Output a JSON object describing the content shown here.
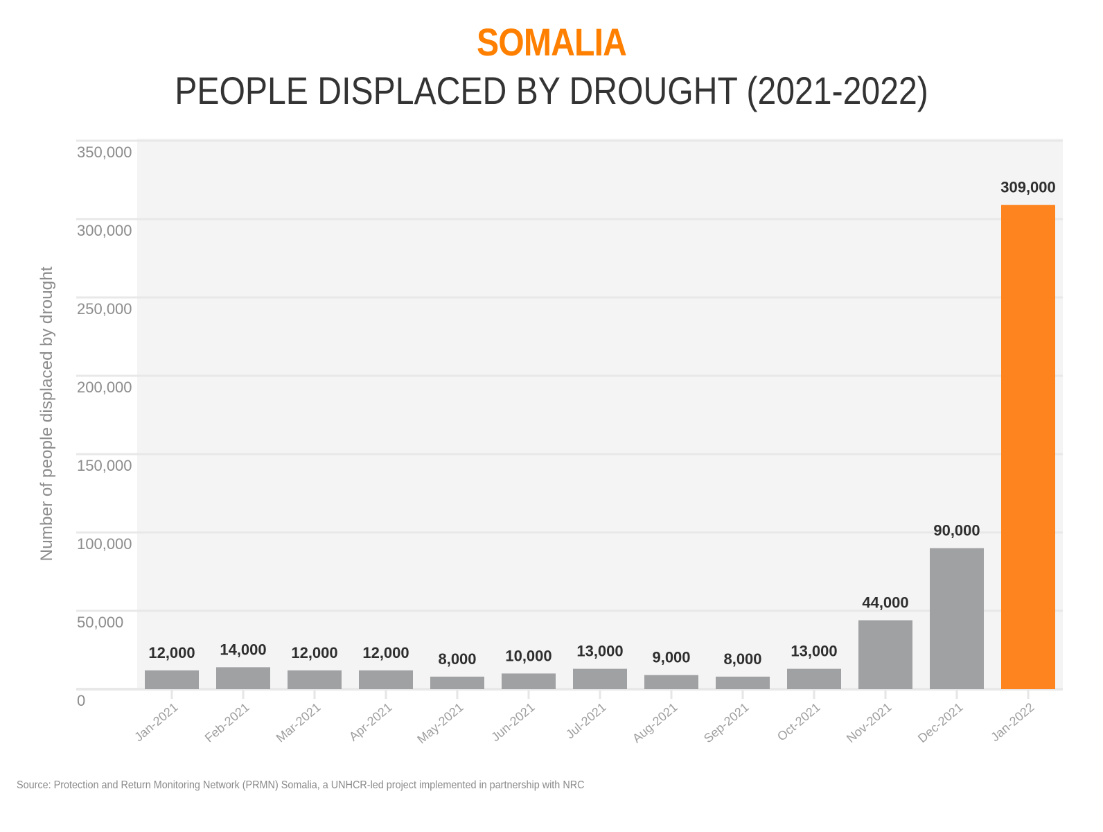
{
  "header": {
    "title": "SOMALIA",
    "subtitle": "PEOPLE DISPLACED BY DROUGHT (2021-2022)"
  },
  "source": "Source: Protection and Return Monitoring Network (PRMN) Somalia, a UNHCR-led project implemented in partnership with NRC",
  "colors": {
    "accent": "#ff7f00",
    "bar": "#a0a1a3",
    "highlight_bar": "#fd841f",
    "plot_background": "#f4f4f4",
    "gridline": "#e8e8e8"
  },
  "chart_data": {
    "type": "bar",
    "title": "SOMALIA",
    "subtitle": "PEOPLE DISPLACED BY DROUGHT (2021-2022)",
    "xlabel": "",
    "ylabel": "Number of people displaced by drought",
    "ylim": [
      0,
      350000
    ],
    "yticks": [
      0,
      50000,
      100000,
      150000,
      200000,
      250000,
      300000,
      350000
    ],
    "ytick_labels": [
      "0",
      "50,000",
      "100,000",
      "150,000",
      "200,000",
      "250,000",
      "300,000",
      "350,000"
    ],
    "grid": true,
    "legend": "none",
    "categories": [
      "Jan-2021",
      "Feb-2021",
      "Mar-2021",
      "Apr-2021",
      "May-2021",
      "Jun-2021",
      "Jul-2021",
      "Aug-2021",
      "Sep-2021",
      "Oct-2021",
      "Nov-2021",
      "Dec-2021",
      "Jan-2022"
    ],
    "values": [
      12000,
      14000,
      12000,
      12000,
      8000,
      10000,
      13000,
      9000,
      8000,
      13000,
      44000,
      90000,
      309000
    ],
    "data_labels": [
      "12,000",
      "14,000",
      "12,000",
      "12,000",
      "8,000",
      "10,000",
      "13,000",
      "9,000",
      "8,000",
      "13,000",
      "44,000",
      "90,000",
      "309,000"
    ],
    "highlight_index": 12
  }
}
